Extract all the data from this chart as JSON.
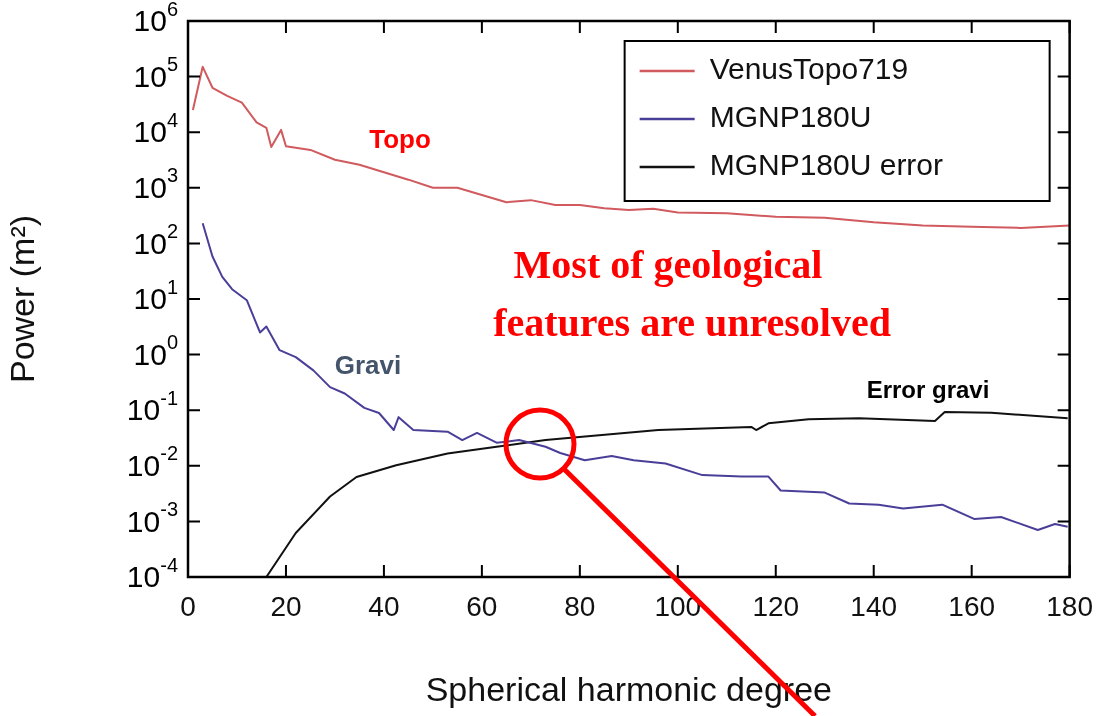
{
  "chart_data": {
    "type": "line",
    "xlabel": "Spherical harmonic degree",
    "ylabel": "Power (m²)",
    "log": "y",
    "xlim": [
      0,
      180
    ],
    "xticks": [
      0,
      20,
      40,
      60,
      80,
      100,
      120,
      140,
      160,
      180
    ],
    "ylim": [
      0.0001,
      1000000
    ],
    "yticks": [
      {
        "value": 0.0001,
        "label": "10$^{-4}$"
      },
      {
        "value": 0.001,
        "label": "10$^{-3}$"
      },
      {
        "value": 0.01,
        "label": "10$^{-2}$"
      },
      {
        "value": 0.1,
        "label": "10$^{-1}$"
      },
      {
        "value": 1,
        "label": "10$^{0}$"
      },
      {
        "value": 10,
        "label": "10$^{1}$"
      },
      {
        "value": 100,
        "label": "10$^{2}$"
      },
      {
        "value": 1000,
        "label": "10$^{3}$"
      },
      {
        "value": 10000,
        "label": "10$^{4}$"
      },
      {
        "value": 100000,
        "label": "10$^{5}$"
      },
      {
        "value": 1000000,
        "label": "10$^{6}$"
      }
    ],
    "grid": false,
    "legend": "top right",
    "marker": "none",
    "line_style": "solid",
    "series": [
      {
        "name": "VenusTopo719",
        "color": "#d05a5e",
        "x": [
          1,
          3,
          5,
          8,
          11,
          14,
          16,
          17,
          19,
          20,
          25,
          30,
          35,
          40,
          45,
          50,
          55,
          60,
          65,
          70,
          75,
          80,
          85,
          90,
          95,
          100,
          110,
          120,
          130,
          140,
          150,
          160,
          170,
          180
        ],
        "values": [
          25000,
          150000,
          63000,
          45000,
          34000,
          15000,
          12000,
          5400,
          11000,
          5600,
          4800,
          3200,
          2600,
          1900,
          1400,
          1000,
          1000,
          740,
          550,
          600,
          490,
          490,
          430,
          400,
          420,
          360,
          350,
          300,
          290,
          240,
          210,
          200,
          190,
          210
        ]
      },
      {
        "name": "MGNP180U",
        "color": "#4a3f98",
        "x": [
          3,
          5,
          7,
          9,
          12,
          14.7,
          16,
          18.7,
          22,
          25.6,
          29,
          32,
          36,
          39,
          42,
          43,
          46,
          53,
          56,
          59,
          63,
          67.6,
          73,
          76,
          81,
          86.5,
          91,
          97.5,
          105,
          113,
          118.5,
          121,
          130,
          135,
          141,
          146,
          154,
          160.6,
          166,
          173.5,
          177,
          179.6
        ],
        "values": [
          230,
          58,
          25,
          15,
          9.5,
          2.5,
          3.2,
          1.2,
          0.9,
          0.52,
          0.26,
          0.2,
          0.11,
          0.089,
          0.044,
          0.075,
          0.044,
          0.041,
          0.029,
          0.039,
          0.026,
          0.029,
          0.022,
          0.017,
          0.0126,
          0.015,
          0.0126,
          0.011,
          0.0068,
          0.0064,
          0.0064,
          0.0036,
          0.0033,
          0.0021,
          0.002,
          0.0017,
          0.002,
          0.0011,
          0.0012,
          0.0007,
          0.0009,
          0.0008
        ]
      },
      {
        "name": "MGNP180U error",
        "color": "#111111",
        "x": [
          16,
          22,
          29,
          34.4,
          42.5,
          53,
          63,
          73,
          92,
          96,
          115,
          116,
          118.5,
          126.7,
          137,
          152.5,
          154.5,
          164,
          179.6
        ],
        "values": [
          0.0001,
          0.00062,
          0.0028,
          0.0063,
          0.0102,
          0.0166,
          0.022,
          0.029,
          0.041,
          0.044,
          0.05,
          0.044,
          0.058,
          0.069,
          0.072,
          0.064,
          0.093,
          0.09,
          0.072
        ]
      }
    ],
    "annotations": [
      "Topo",
      "Gravi",
      "Error gravi",
      "Most of geological",
      "features are unresolved"
    ]
  }
}
